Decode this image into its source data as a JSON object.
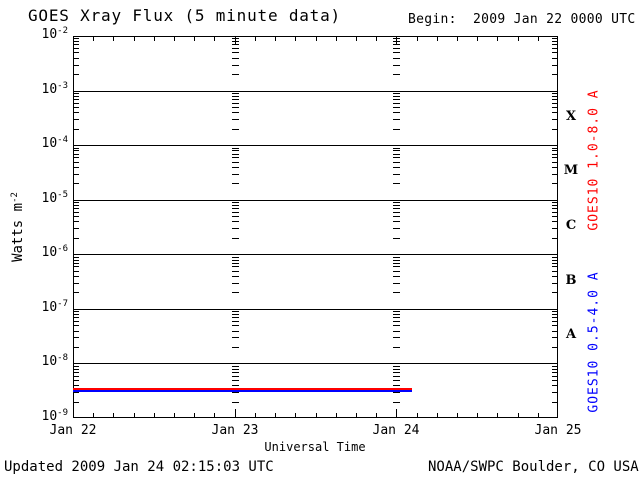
{
  "colors": {
    "background": "#ffffff",
    "axis": "#000000",
    "goes_long": "#ff0000",
    "goes_short": "#0000ff"
  },
  "header": {
    "title": "GOES Xray Flux (5 minute data)",
    "begin_label": "Begin:  2009 Jan 22 0000 UTC"
  },
  "footer": {
    "updated": "Updated 2009 Jan 24 02:15:03 UTC",
    "source": "NOAA/SWPC Boulder, CO USA"
  },
  "chart_data": {
    "type": "line",
    "title": "GOES Xray Flux (5 minute data)",
    "begin_time": "2009 Jan 22 0000 UTC",
    "xlabel": "Universal Time",
    "ylabel_base": "Watts m",
    "ylabel_sup": "-2",
    "x_ticks": [
      "Jan 22",
      "Jan 23",
      "Jan 24",
      "Jan 25"
    ],
    "x_range_days": [
      0,
      3
    ],
    "x_minor_tick_hours": 3,
    "y_scale": "log",
    "y_log_exponents": [
      -2,
      -3,
      -4,
      -5,
      -6,
      -7,
      -8,
      -9
    ],
    "y_tick_base": "10",
    "grid": {
      "horizontal_major": "solid",
      "vertical_day_columns": "log-dashed",
      "day_column_positions_days": [
        1,
        2
      ]
    },
    "flux_classes": [
      {
        "label": "X",
        "center_log": -3.5
      },
      {
        "label": "M",
        "center_log": -4.5
      },
      {
        "label": "C",
        "center_log": -5.5
      },
      {
        "label": "B",
        "center_log": -6.5
      },
      {
        "label": "A",
        "center_log": -7.5
      }
    ],
    "series": [
      {
        "name": "GOES10 1.0-8.0 A",
        "color": "#ff0000",
        "value_wm2": 3.4e-09,
        "start_day": 0.0,
        "end_day": 2.094,
        "shape": "flat"
      },
      {
        "name": "GOES10 0.5-4.0 A",
        "color": "#0000ff",
        "value_wm2": 3.1e-09,
        "start_day": 0.0,
        "end_day": 2.094,
        "shape": "flat"
      }
    ],
    "legend_position": "right-rotated"
  }
}
